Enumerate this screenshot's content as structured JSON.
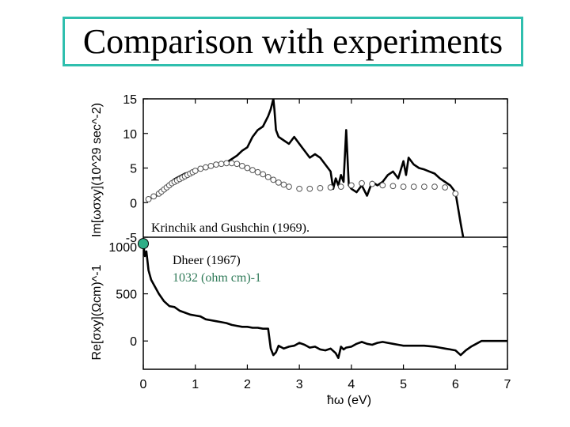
{
  "title": "Comparison with experiments",
  "chart_data": [
    {
      "type": "line",
      "panel": "top",
      "ylabel": "Im[ωσxy](10^29 sec^-2)",
      "ylim": [
        -5,
        15
      ],
      "yticks": [
        "15",
        "10",
        "5",
        "0",
        "-5"
      ],
      "xlim": [
        0,
        7
      ],
      "annotation": "Krinchik and Gushchin (1969).",
      "series": [
        {
          "style": "solid-line",
          "x": [
            0.05,
            0.1,
            0.2,
            0.3,
            0.4,
            0.5,
            0.6,
            0.7,
            0.8,
            0.9,
            1.0,
            1.2,
            1.4,
            1.6,
            1.8,
            1.9,
            2.0,
            2.1,
            2.2,
            2.3,
            2.4,
            2.45,
            2.5,
            2.52,
            2.55,
            2.6,
            2.7,
            2.8,
            2.9,
            3.0,
            3.1,
            3.2,
            3.3,
            3.4,
            3.5,
            3.6,
            3.65,
            3.7,
            3.75,
            3.8,
            3.85,
            3.9,
            3.95,
            4.0,
            4.1,
            4.2,
            4.3,
            4.4,
            4.5,
            4.6,
            4.7,
            4.8,
            4.9,
            5.0,
            5.05,
            5.1,
            5.2,
            5.3,
            5.4,
            5.5,
            5.6,
            5.7,
            5.8,
            5.9,
            6.0,
            6.1,
            6.15
          ],
          "y": [
            0.3,
            0.5,
            0.8,
            1.2,
            2.0,
            2.8,
            3.4,
            3.8,
            4.2,
            4.4,
            4.6,
            5.0,
            5.4,
            5.8,
            6.8,
            7.5,
            8.0,
            9.5,
            10.5,
            11.0,
            12.5,
            13.5,
            15,
            13.5,
            10.5,
            9.5,
            9.0,
            8.5,
            9.5,
            8.5,
            7.5,
            6.5,
            7.0,
            6.5,
            5.5,
            4.5,
            2.0,
            3.5,
            2.5,
            4.0,
            3.0,
            10.5,
            2.5,
            2.0,
            1.5,
            2.5,
            1.0,
            3.0,
            2.5,
            3.0,
            4.0,
            4.5,
            3.5,
            6.0,
            4.0,
            6.5,
            5.5,
            5.0,
            4.8,
            4.5,
            4.2,
            3.5,
            3.0,
            2.5,
            1.5,
            -3,
            -5
          ]
        },
        {
          "style": "open-circles",
          "x": [
            0.1,
            0.2,
            0.3,
            0.35,
            0.4,
            0.45,
            0.5,
            0.55,
            0.6,
            0.65,
            0.7,
            0.75,
            0.8,
            0.85,
            0.9,
            0.95,
            1.0,
            1.1,
            1.2,
            1.3,
            1.4,
            1.5,
            1.6,
            1.7,
            1.8,
            1.9,
            2.0,
            2.1,
            2.2,
            2.3,
            2.4,
            2.5,
            2.6,
            2.7,
            2.8,
            3.0,
            3.2,
            3.4,
            3.6,
            3.8,
            4.0,
            4.2,
            4.4,
            4.6,
            4.8,
            5.0,
            5.2,
            5.4,
            5.6,
            5.8,
            6.0
          ],
          "y": [
            0.5,
            0.9,
            1.3,
            1.6,
            1.9,
            2.2,
            2.5,
            2.8,
            3.0,
            3.2,
            3.4,
            3.6,
            3.8,
            4.0,
            4.2,
            4.4,
            4.6,
            4.9,
            5.1,
            5.3,
            5.5,
            5.6,
            5.7,
            5.7,
            5.6,
            5.3,
            5.0,
            4.7,
            4.4,
            4.1,
            3.7,
            3.3,
            2.9,
            2.6,
            2.3,
            2.0,
            2.0,
            2.1,
            2.2,
            2.3,
            2.5,
            2.8,
            2.7,
            2.5,
            2.4,
            2.3,
            2.3,
            2.3,
            2.3,
            2.2,
            1.3
          ]
        }
      ]
    },
    {
      "type": "line",
      "panel": "bottom",
      "ylabel": "Re[σxy](Ωcm)^-1",
      "ylim": [
        -300,
        1100
      ],
      "yticks": [
        "1000",
        "500",
        "0"
      ],
      "xlim": [
        0,
        7
      ],
      "xticks": [
        "0",
        "1",
        "2",
        "3",
        "4",
        "5",
        "6",
        "7"
      ],
      "xlabel": "ħω (eV)",
      "annotations": [
        "Dheer (1967)",
        "1032 (ohm cm)-1"
      ],
      "marker": {
        "x": 0.0,
        "y": 1032,
        "color": "#2fae87"
      },
      "series": [
        {
          "style": "solid-line",
          "x": [
            0.0,
            0.03,
            0.06,
            0.1,
            0.15,
            0.2,
            0.3,
            0.4,
            0.5,
            0.6,
            0.7,
            0.8,
            0.9,
            1.0,
            1.1,
            1.2,
            1.3,
            1.4,
            1.5,
            1.6,
            1.7,
            1.8,
            1.9,
            2.0,
            2.1,
            2.2,
            2.3,
            2.4,
            2.45,
            2.5,
            2.55,
            2.6,
            2.7,
            2.8,
            2.9,
            3.0,
            3.1,
            3.2,
            3.3,
            3.4,
            3.5,
            3.6,
            3.7,
            3.75,
            3.8,
            3.85,
            3.9,
            4.0,
            4.1,
            4.2,
            4.3,
            4.4,
            4.5,
            4.6,
            4.7,
            4.8,
            4.9,
            5.0,
            5.1,
            5.2,
            5.3,
            5.4,
            5.5,
            5.6,
            5.7,
            5.8,
            5.9,
            6.0,
            6.1,
            6.2,
            6.3,
            6.4,
            6.5,
            6.6,
            7.0
          ],
          "y": [
            1032,
            900,
            950,
            750,
            650,
            600,
            500,
            420,
            370,
            360,
            320,
            300,
            280,
            270,
            260,
            230,
            220,
            210,
            200,
            190,
            170,
            160,
            150,
            150,
            140,
            140,
            130,
            130,
            -80,
            -150,
            -120,
            -50,
            -80,
            -60,
            -50,
            -20,
            -40,
            -70,
            -60,
            -90,
            -100,
            -80,
            -130,
            -180,
            -60,
            -90,
            -70,
            -60,
            -30,
            -10,
            -30,
            -40,
            -20,
            -10,
            -20,
            -30,
            -40,
            -50,
            -50,
            -50,
            -50,
            -50,
            -55,
            -60,
            -70,
            -80,
            -90,
            -100,
            -150,
            -100,
            -60,
            -30,
            0,
            0,
            0
          ]
        }
      ]
    }
  ]
}
